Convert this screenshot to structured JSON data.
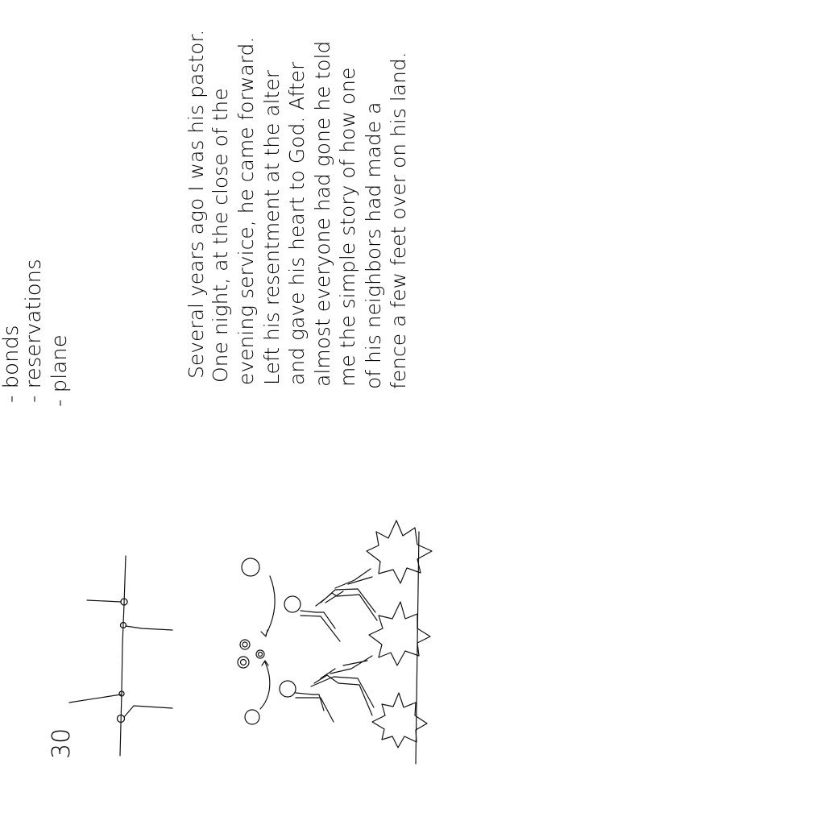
{
  "notes": {
    "list": [
      "- bonds",
      "- reservations",
      "- plane"
    ],
    "paragraph": [
      "Several years ago I was his pastor.",
      "One night, at the close of the",
      "evening service, he came forward.",
      "Left his resentment at the alter",
      "and gave his heart to God. After",
      "almost everyone had gone he told",
      "me the simple story of how one",
      "of his neighbors had made a",
      "fence a few feet over on his land."
    ],
    "page_number": "30"
  }
}
